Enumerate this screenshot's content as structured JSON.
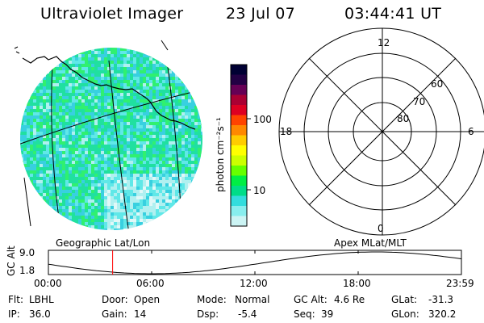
{
  "header": {
    "title": "Ultraviolet Imager",
    "date": "23 Jul 07",
    "time": "03:44:41 UT"
  },
  "colorbar": {
    "unit_label": "photon cm⁻²s⁻¹",
    "ticks": [
      "100",
      "10"
    ],
    "colors": [
      "#000033",
      "#220044",
      "#660055",
      "#aa0033",
      "#dd0022",
      "#ff4400",
      "#ff8800",
      "#ffcc00",
      "#ffff00",
      "#ccff00",
      "#66ff00",
      "#00ee44",
      "#00dd88",
      "#33dddd",
      "#88eeee",
      "#ccf4f4"
    ]
  },
  "geo_map": {
    "label": "Geographic Lat/Lon",
    "pixel_colors": [
      "#20e0a0",
      "#38d0e0",
      "#30f070",
      "#60e8e8",
      "#b0f0f0",
      "#e0f8f8"
    ]
  },
  "polar_plot": {
    "label": "Apex MLat/MLT",
    "mlt_labels": {
      "top": "12",
      "left": "18",
      "right": "6",
      "bottom": "0"
    },
    "lat_labels": [
      "60",
      "70",
      "80"
    ]
  },
  "timeline": {
    "ylabel": "GC Alt",
    "yticks": [
      "9.0",
      "1.8"
    ],
    "xticks": [
      "00:00",
      "06:00",
      "12:00",
      "18:00",
      "23:59"
    ],
    "current_marker_time": "03:44",
    "marker_color": "#ff0000"
  },
  "info": {
    "flt_label": "Flt:",
    "flt_value": "LBHL",
    "ip_label": "IP:",
    "ip_value": "36.0",
    "door_label": "Door:",
    "door_value": "Open",
    "gain_label": "Gain:",
    "gain_value": "14",
    "mode_label": "Mode:",
    "mode_value": "Normal",
    "dsp_label": "Dsp:",
    "dsp_value": "-5.4",
    "gcalt_label": "GC Alt:",
    "gcalt_value": "4.6 Re",
    "seq_label": "Seq:",
    "seq_value": "39",
    "glat_label": "GLat:",
    "glat_value": "-31.3",
    "glon_label": "GLon:",
    "glon_value": "320.2"
  }
}
